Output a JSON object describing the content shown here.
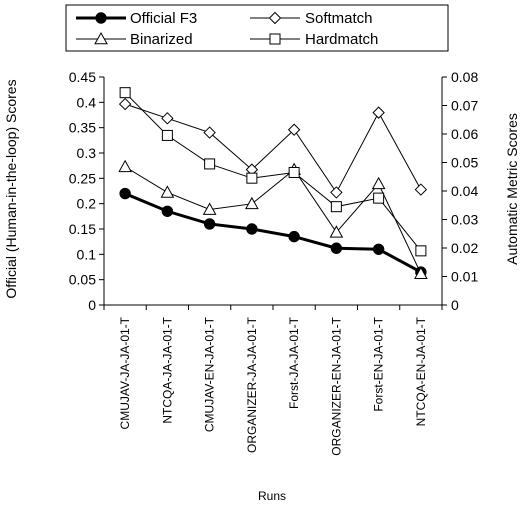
{
  "chart_data": {
    "type": "line",
    "categories": [
      "CMUJAV-JA-JA-01-T",
      "NTCQA-JA-JA-01-T",
      "CMUJAV-EN-JA-01-T",
      "ORGANIZER-JA-JA-01-T",
      "Forst-JA-JA-01-T",
      "ORGANIZER-EN-JA-01-T",
      "Forst-EN-JA-01-T",
      "NTCQA-EN-JA-01-T"
    ],
    "xlabel": "Runs",
    "ylabel_left": "Official (Human-in-the-loop) Scores",
    "ylabel_right": "Automatic Metric Scores",
    "ylim_left": [
      0,
      0.45
    ],
    "ylim_right": [
      0,
      0.08
    ],
    "yticks_left": [
      "0",
      "0.05",
      "0.1",
      "0.15",
      "0.2",
      "0.25",
      "0.3",
      "0.35",
      "0.4",
      "0.45"
    ],
    "yticks_right": [
      "0",
      "0.01",
      "0.02",
      "0.03",
      "0.04",
      "0.05",
      "0.06",
      "0.07",
      "0.08"
    ],
    "grid": false,
    "legend_position": "top",
    "series": [
      {
        "name": "Official F3",
        "axis": "left",
        "marker": "filled-circle",
        "values": [
          0.22,
          0.185,
          0.16,
          0.15,
          0.135,
          0.112,
          0.11,
          0.065
        ]
      },
      {
        "name": "Softmatch",
        "axis": "right",
        "marker": "open-diamond",
        "values": [
          0.0705,
          0.0655,
          0.0605,
          0.0475,
          0.0615,
          0.0395,
          0.0675,
          0.0405
        ]
      },
      {
        "name": "Binarized",
        "axis": "right",
        "marker": "open-triangle",
        "values": [
          0.0485,
          0.0395,
          0.0335,
          0.0355,
          0.0475,
          0.0255,
          0.0425,
          0.011
        ]
      },
      {
        "name": "Hardmatch",
        "axis": "right",
        "marker": "open-square",
        "values": [
          0.0745,
          0.0595,
          0.0495,
          0.0445,
          0.0465,
          0.0345,
          0.0375,
          0.019
        ]
      }
    ]
  }
}
